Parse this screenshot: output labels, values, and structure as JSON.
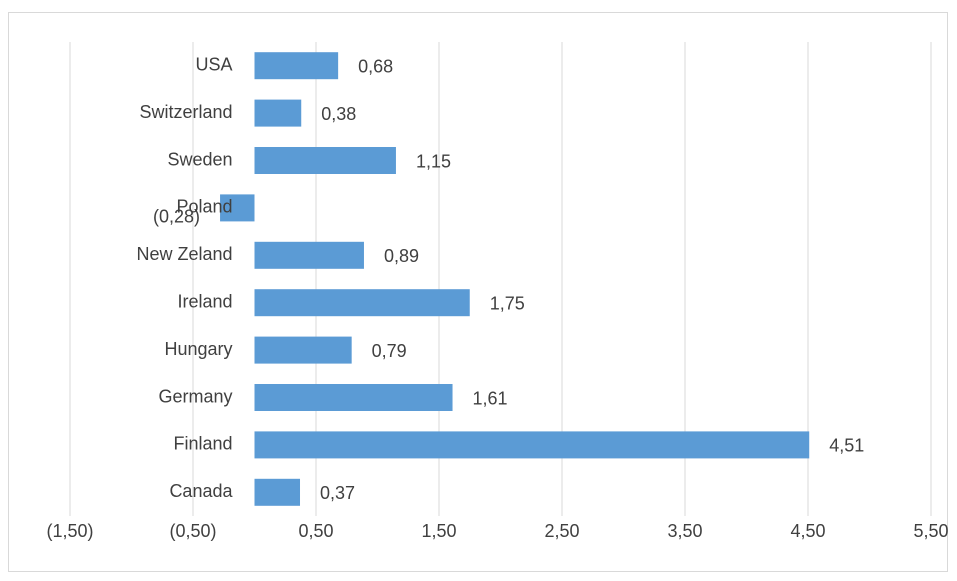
{
  "chart_data": {
    "type": "bar",
    "orientation": "horizontal",
    "categories": [
      "USA",
      "Switzerland",
      "Sweden",
      "Poland",
      "New Zeland",
      "Ireland",
      "Hungary",
      "Germany",
      "Finland",
      "Canada"
    ],
    "values": [
      0.68,
      0.38,
      1.15,
      -0.28,
      0.89,
      1.75,
      0.79,
      1.61,
      4.51,
      0.37
    ],
    "data_labels": [
      "0,68",
      "0,38",
      "1,15",
      "(0,28)",
      "0,89",
      "1,75",
      "0,79",
      "1,61",
      "4,51",
      "0,37"
    ],
    "xlim": [
      -1.5,
      5.5
    ],
    "xticks": [
      -1.5,
      -0.5,
      0.5,
      1.5,
      2.5,
      3.5,
      4.5,
      5.5
    ],
    "xtick_labels": [
      "(1,50)",
      "(0,50)",
      "0,50",
      "1,50",
      "2,50",
      "3,50",
      "4,50",
      "5,50"
    ],
    "gridlines": "vertical",
    "legend": "none",
    "colors": {
      "bar": "#5b9bd5",
      "grid": "#d9d9d9",
      "text": "#404040"
    }
  }
}
